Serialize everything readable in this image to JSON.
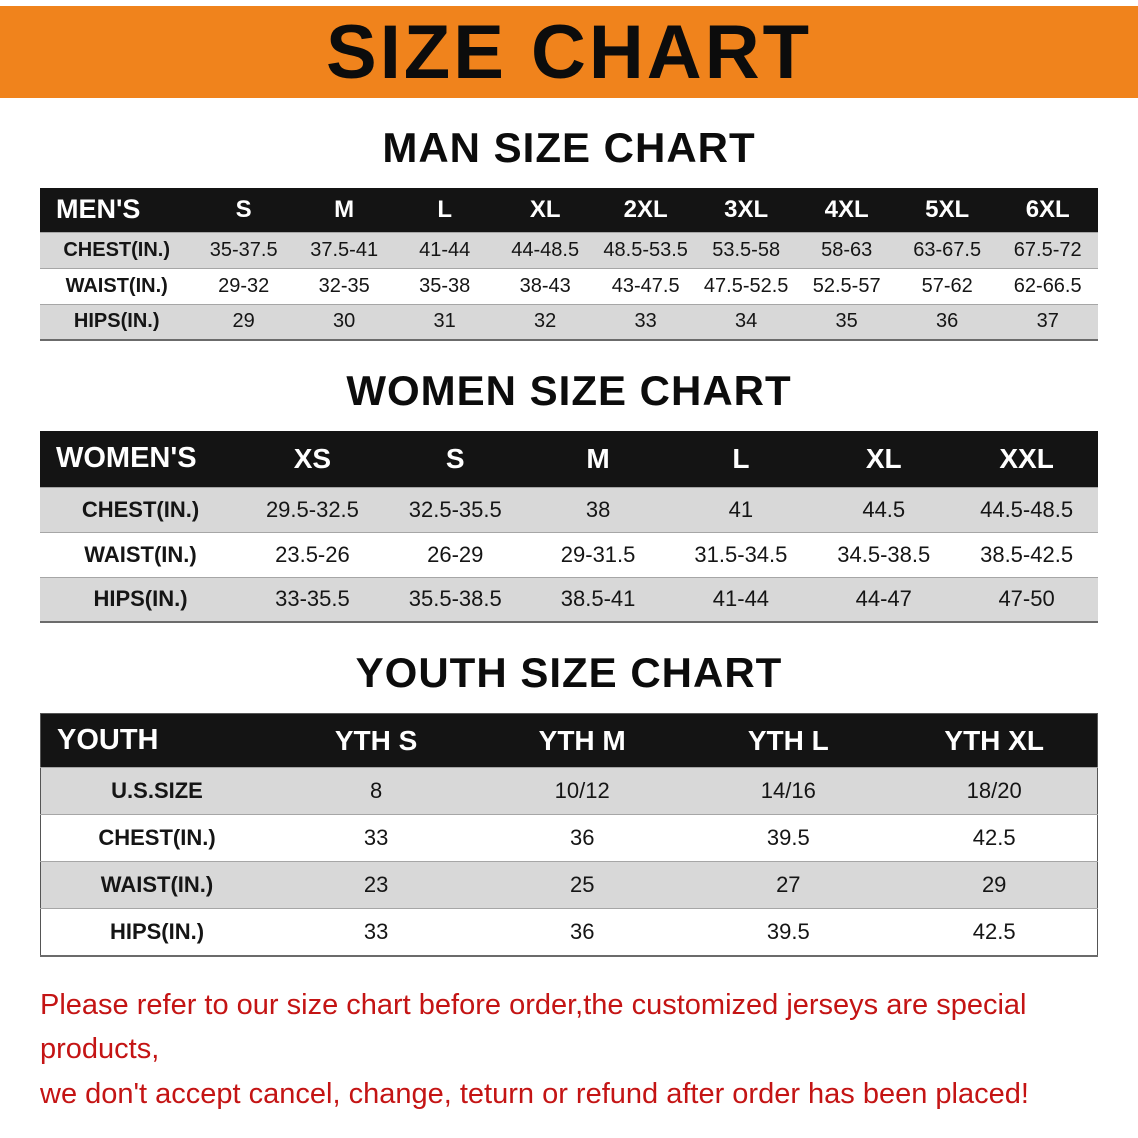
{
  "banner": {
    "title": "SIZE CHART"
  },
  "men": {
    "heading": "MAN SIZE CHART",
    "header": [
      "MEN'S",
      "S",
      "M",
      "L",
      "XL",
      "2XL",
      "3XL",
      "4XL",
      "5XL",
      "6XL"
    ],
    "rows": [
      [
        "CHEST(IN.)",
        "35-37.5",
        "37.5-41",
        "41-44",
        "44-48.5",
        "48.5-53.5",
        "53.5-58",
        "58-63",
        "63-67.5",
        "67.5-72"
      ],
      [
        "WAIST(IN.)",
        "29-32",
        "32-35",
        "35-38",
        "38-43",
        "43-47.5",
        "47.5-52.5",
        "52.5-57",
        "57-62",
        "62-66.5"
      ],
      [
        "HIPS(IN.)",
        "29",
        "30",
        "31",
        "32",
        "33",
        "34",
        "35",
        "36",
        "37"
      ]
    ]
  },
  "women": {
    "heading": "WOMEN SIZE CHART",
    "header": [
      "WOMEN'S",
      "XS",
      "S",
      "M",
      "L",
      "XL",
      "XXL"
    ],
    "rows": [
      [
        "CHEST(IN.)",
        "29.5-32.5",
        "32.5-35.5",
        "38",
        "41",
        "44.5",
        "44.5-48.5"
      ],
      [
        "WAIST(IN.)",
        "23.5-26",
        "26-29",
        "29-31.5",
        "31.5-34.5",
        "34.5-38.5",
        "38.5-42.5"
      ],
      [
        "HIPS(IN.)",
        "33-35.5",
        "35.5-38.5",
        "38.5-41",
        "41-44",
        "44-47",
        "47-50"
      ]
    ]
  },
  "youth": {
    "heading": "YOUTH SIZE CHART",
    "header": [
      "YOUTH",
      "YTH S",
      "YTH M",
      "YTH L",
      "YTH XL"
    ],
    "rows": [
      [
        "U.S.SIZE",
        "8",
        "10/12",
        "14/16",
        "18/20"
      ],
      [
        "CHEST(IN.)",
        "33",
        "36",
        "39.5",
        "42.5"
      ],
      [
        "WAIST(IN.)",
        "23",
        "25",
        "27",
        "29"
      ],
      [
        "HIPS(IN.)",
        "33",
        "36",
        "39.5",
        "42.5"
      ]
    ]
  },
  "disclaimer": {
    "line1": "Please refer to our size chart before order,the customized jerseys are special products,",
    "line2": "we don't accept cancel, change, teturn or refund after order has been placed!"
  },
  "colors": {
    "banner_orange": "#f0831c",
    "table_header_black": "#141414",
    "row_stripe_gray": "#d8d8d8",
    "disclaimer_red": "#c41414"
  }
}
